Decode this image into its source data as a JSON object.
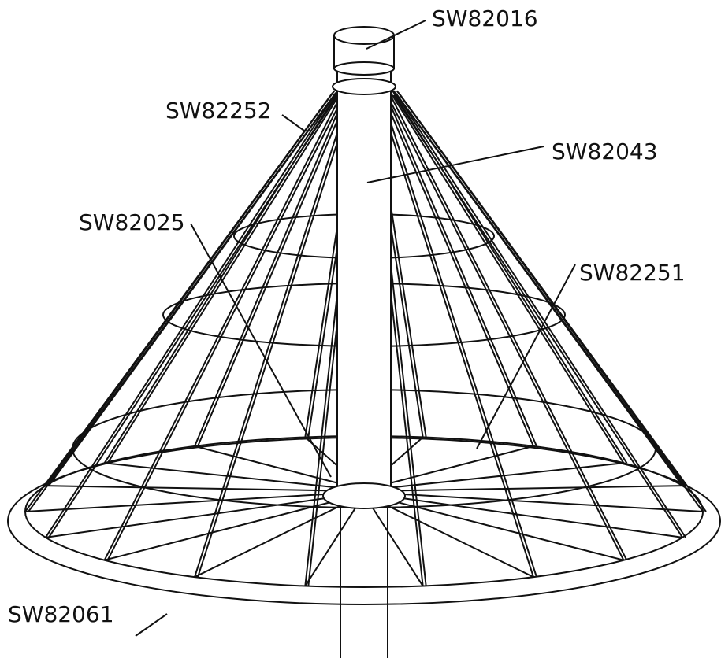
{
  "callouts": [
    {
      "label": "SW82016"
    },
    {
      "label": "SW82252"
    },
    {
      "label": "SW82043"
    },
    {
      "label": "SW82025"
    },
    {
      "label": "SW82251"
    },
    {
      "label": "SW82061"
    }
  ]
}
